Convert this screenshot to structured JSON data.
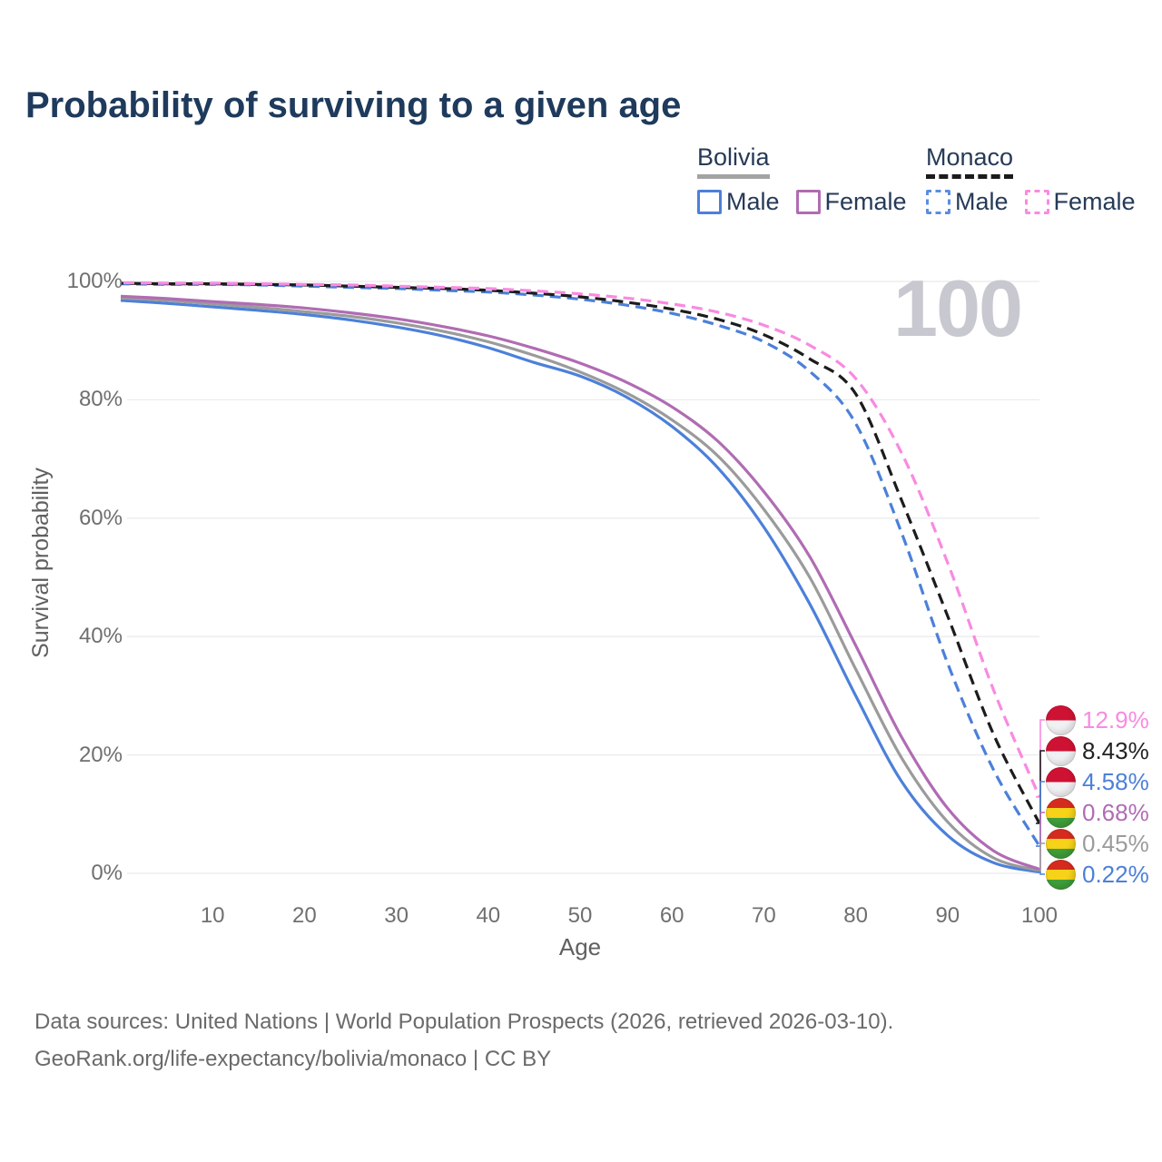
{
  "title": "Probability of surviving to a given age",
  "watermark_age": "100",
  "legend": {
    "groups": [
      {
        "name": "Bolivia",
        "line_style": "solid",
        "underline_color": "#a3a3a3",
        "items": [
          {
            "label": "Male",
            "color": "#4c80d9"
          },
          {
            "label": "Female",
            "color": "#b06cb3"
          }
        ]
      },
      {
        "name": "Monaco",
        "line_style": "dashed",
        "underline_color": "#1b1b1b",
        "items": [
          {
            "label": "Male",
            "color": "#5b8de0"
          },
          {
            "label": "Female",
            "color": "#f98ae1"
          }
        ]
      }
    ]
  },
  "y_axis": {
    "label": "Survival probability",
    "ticks": [
      {
        "label": "100%",
        "value": 100
      },
      {
        "label": "80%",
        "value": 80
      },
      {
        "label": "60%",
        "value": 60
      },
      {
        "label": "40%",
        "value": 40
      },
      {
        "label": "20%",
        "value": 20
      },
      {
        "label": "0%",
        "value": 0
      }
    ]
  },
  "x_axis": {
    "label": "Age",
    "ticks": [
      10,
      20,
      30,
      40,
      50,
      60,
      70,
      80,
      90,
      100
    ]
  },
  "footer": {
    "line1": "Data sources: United Nations | World Population Prospects (2026, retrieved 2026-03-10).",
    "line2": "GeoRank.org/life-expectancy/bolivia/monaco | CC BY"
  },
  "chart_data": {
    "type": "line",
    "title": "Probability of surviving to a given age",
    "xlabel": "Age",
    "ylabel": "Survival probability",
    "xlim": [
      0,
      100
    ],
    "ylim": [
      0,
      100
    ],
    "y_unit": "%",
    "grid": "horizontal",
    "legend_position": "top-right",
    "x": [
      0,
      5,
      10,
      15,
      20,
      25,
      30,
      35,
      40,
      45,
      50,
      55,
      60,
      65,
      70,
      75,
      80,
      85,
      90,
      95,
      100
    ],
    "series": [
      {
        "name": "Monaco Female",
        "country": "Monaco",
        "sex": "Female",
        "color": "#f98ae1",
        "dashed": true,
        "flag": "monaco",
        "end_label": "12.9%",
        "values": [
          99.8,
          99.7,
          99.7,
          99.6,
          99.5,
          99.4,
          99.2,
          99.0,
          98.8,
          98.4,
          97.9,
          97.2,
          96.2,
          94.8,
          92.6,
          89.2,
          83.6,
          71.0,
          52.5,
          31.0,
          12.9
        ]
      },
      {
        "name": "Monaco Both sexes",
        "country": "Monaco",
        "sex": "Both sexes",
        "color": "#1c1c1c",
        "dashed": true,
        "flag": "monaco",
        "end_label": "8.43%",
        "values": [
          99.7,
          99.6,
          99.6,
          99.5,
          99.4,
          99.2,
          99.0,
          98.8,
          98.5,
          98.0,
          97.4,
          96.5,
          95.3,
          93.6,
          91.0,
          86.9,
          81.0,
          63.0,
          43.5,
          23.5,
          8.43
        ]
      },
      {
        "name": "Monaco Male",
        "country": "Monaco",
        "sex": "Male",
        "color": "#4c80d9",
        "dashed": true,
        "flag": "monaco",
        "end_label": "4.58%",
        "values": [
          99.6,
          99.5,
          99.5,
          99.4,
          99.2,
          99.0,
          98.8,
          98.5,
          98.2,
          97.7,
          97.0,
          96.0,
          94.6,
          92.6,
          89.8,
          84.8,
          76.0,
          57.5,
          35.5,
          17.5,
          4.58
        ]
      },
      {
        "name": "Bolivia Female",
        "country": "Bolivia",
        "sex": "Female",
        "color": "#b06cb3",
        "dashed": false,
        "flag": "bolivia",
        "end_label": "0.68%",
        "values": [
          97.5,
          97.1,
          96.6,
          96.1,
          95.5,
          94.7,
          93.7,
          92.4,
          90.8,
          88.7,
          86.2,
          83.0,
          78.8,
          73.0,
          64.5,
          53.5,
          38.5,
          23.0,
          11.0,
          3.8,
          0.68
        ]
      },
      {
        "name": "Bolivia Both sexes",
        "country": "Bolivia",
        "sex": "Both sexes",
        "color": "#9b9b9b",
        "dashed": false,
        "flag": "bolivia",
        "end_label": "0.45%",
        "values": [
          97.2,
          96.8,
          96.2,
          95.6,
          94.9,
          94.1,
          93.0,
          91.6,
          89.8,
          87.5,
          84.7,
          81.2,
          76.6,
          70.5,
          61.5,
          50.0,
          34.5,
          19.5,
          8.7,
          2.6,
          0.45
        ]
      },
      {
        "name": "Bolivia Male",
        "country": "Bolivia",
        "sex": "Male",
        "color": "#4c80d9",
        "dashed": false,
        "flag": "bolivia",
        "end_label": "0.22%",
        "values": [
          96.8,
          96.3,
          95.7,
          95.1,
          94.4,
          93.5,
          92.3,
          90.8,
          88.8,
          86.3,
          84.0,
          80.5,
          75.5,
          68.5,
          58.5,
          45.5,
          30.0,
          15.5,
          6.4,
          1.8,
          0.22
        ]
      }
    ]
  }
}
